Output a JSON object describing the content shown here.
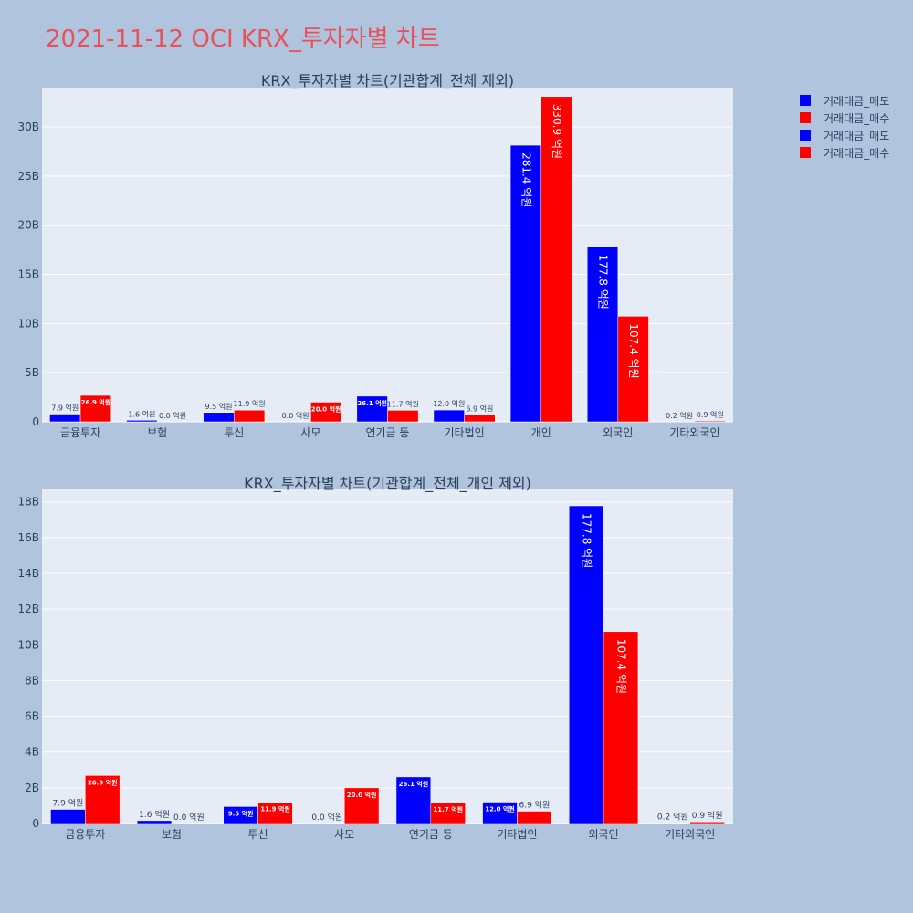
{
  "title": "2021-11-12 OCI KRX_투자자별 차트",
  "legend": [
    {
      "label": "거래대금_매도",
      "color": "#0000ff"
    },
    {
      "label": "거래대금_매수",
      "color": "#ff0000"
    },
    {
      "label": "거래대금_매도",
      "color": "#0000ff"
    },
    {
      "label": "거래대금_매수",
      "color": "#ff0000"
    }
  ],
  "chart_data": [
    {
      "type": "bar",
      "title": "KRX_투자자별 차트(기관합계_전체 제외)",
      "categories": [
        "금융투자",
        "보험",
        "투신",
        "사모",
        "연기금 등",
        "기타법인",
        "개인",
        "외국인",
        "기타외국인"
      ],
      "ylim": [
        0,
        34000000000
      ],
      "yticks": [
        0,
        5000000000,
        10000000000,
        15000000000,
        20000000000,
        25000000000,
        30000000000
      ],
      "ytick_labels": [
        "0",
        "5B",
        "10B",
        "15B",
        "20B",
        "25B",
        "30B"
      ],
      "grid": true,
      "legend_position": "top-right",
      "series": [
        {
          "name": "거래대금_매도",
          "color": "#0000ff",
          "values": [
            790000000,
            160000000,
            950000000,
            0,
            2610000000,
            1200000000,
            28140000000,
            17780000000,
            20000000
          ],
          "labels": [
            "7.9 억원",
            "1.6 억원",
            "9.5 억원",
            "0.0 억원",
            "26.1 억원",
            "12.0 억원",
            "281.4 억원",
            "177.8 억원",
            "0.2 억원"
          ]
        },
        {
          "name": "거래대금_매수",
          "color": "#ff0000",
          "values": [
            2690000000,
            0,
            1190000000,
            2000000000,
            1170000000,
            690000000,
            33090000000,
            10740000000,
            90000000
          ],
          "labels": [
            "26.9 억원",
            "0.0 억원",
            "11.9 억원",
            "20.0 억원",
            "11.7 억원",
            "6.9 억원",
            "330.9 억원",
            "107.4 억원",
            "0.9 억원"
          ]
        }
      ]
    },
    {
      "type": "bar",
      "title": "KRX_투자자별 차트(기관합계_전체_개인 제외)",
      "categories": [
        "금융투자",
        "보험",
        "투신",
        "사모",
        "연기금 등",
        "기타법인",
        "외국인",
        "기타외국인"
      ],
      "ylim": [
        0,
        18700000000
      ],
      "yticks": [
        0,
        2000000000,
        4000000000,
        6000000000,
        8000000000,
        10000000000,
        12000000000,
        14000000000,
        16000000000,
        18000000000
      ],
      "ytick_labels": [
        "0",
        "2B",
        "4B",
        "6B",
        "8B",
        "10B",
        "12B",
        "14B",
        "16B",
        "18B"
      ],
      "grid": true,
      "series": [
        {
          "name": "거래대금_매도",
          "color": "#0000ff",
          "values": [
            790000000,
            160000000,
            950000000,
            0,
            2610000000,
            1200000000,
            17780000000,
            20000000
          ],
          "labels": [
            "7.9 억원",
            "1.6 억원",
            "9.5 억원",
            "0.0 억원",
            "26.1 억원",
            "12.0 억원",
            "177.8 억원",
            "0.2 억원"
          ]
        },
        {
          "name": "거래대금_매수",
          "color": "#ff0000",
          "values": [
            2690000000,
            0,
            1190000000,
            2000000000,
            1170000000,
            690000000,
            10740000000,
            90000000
          ],
          "labels": [
            "26.9 억원",
            "0.0 억원",
            "11.9 억원",
            "20.0 억원",
            "11.7 억원",
            "6.9 억원",
            "107.4 억원",
            "0.9 억원"
          ]
        }
      ]
    }
  ]
}
